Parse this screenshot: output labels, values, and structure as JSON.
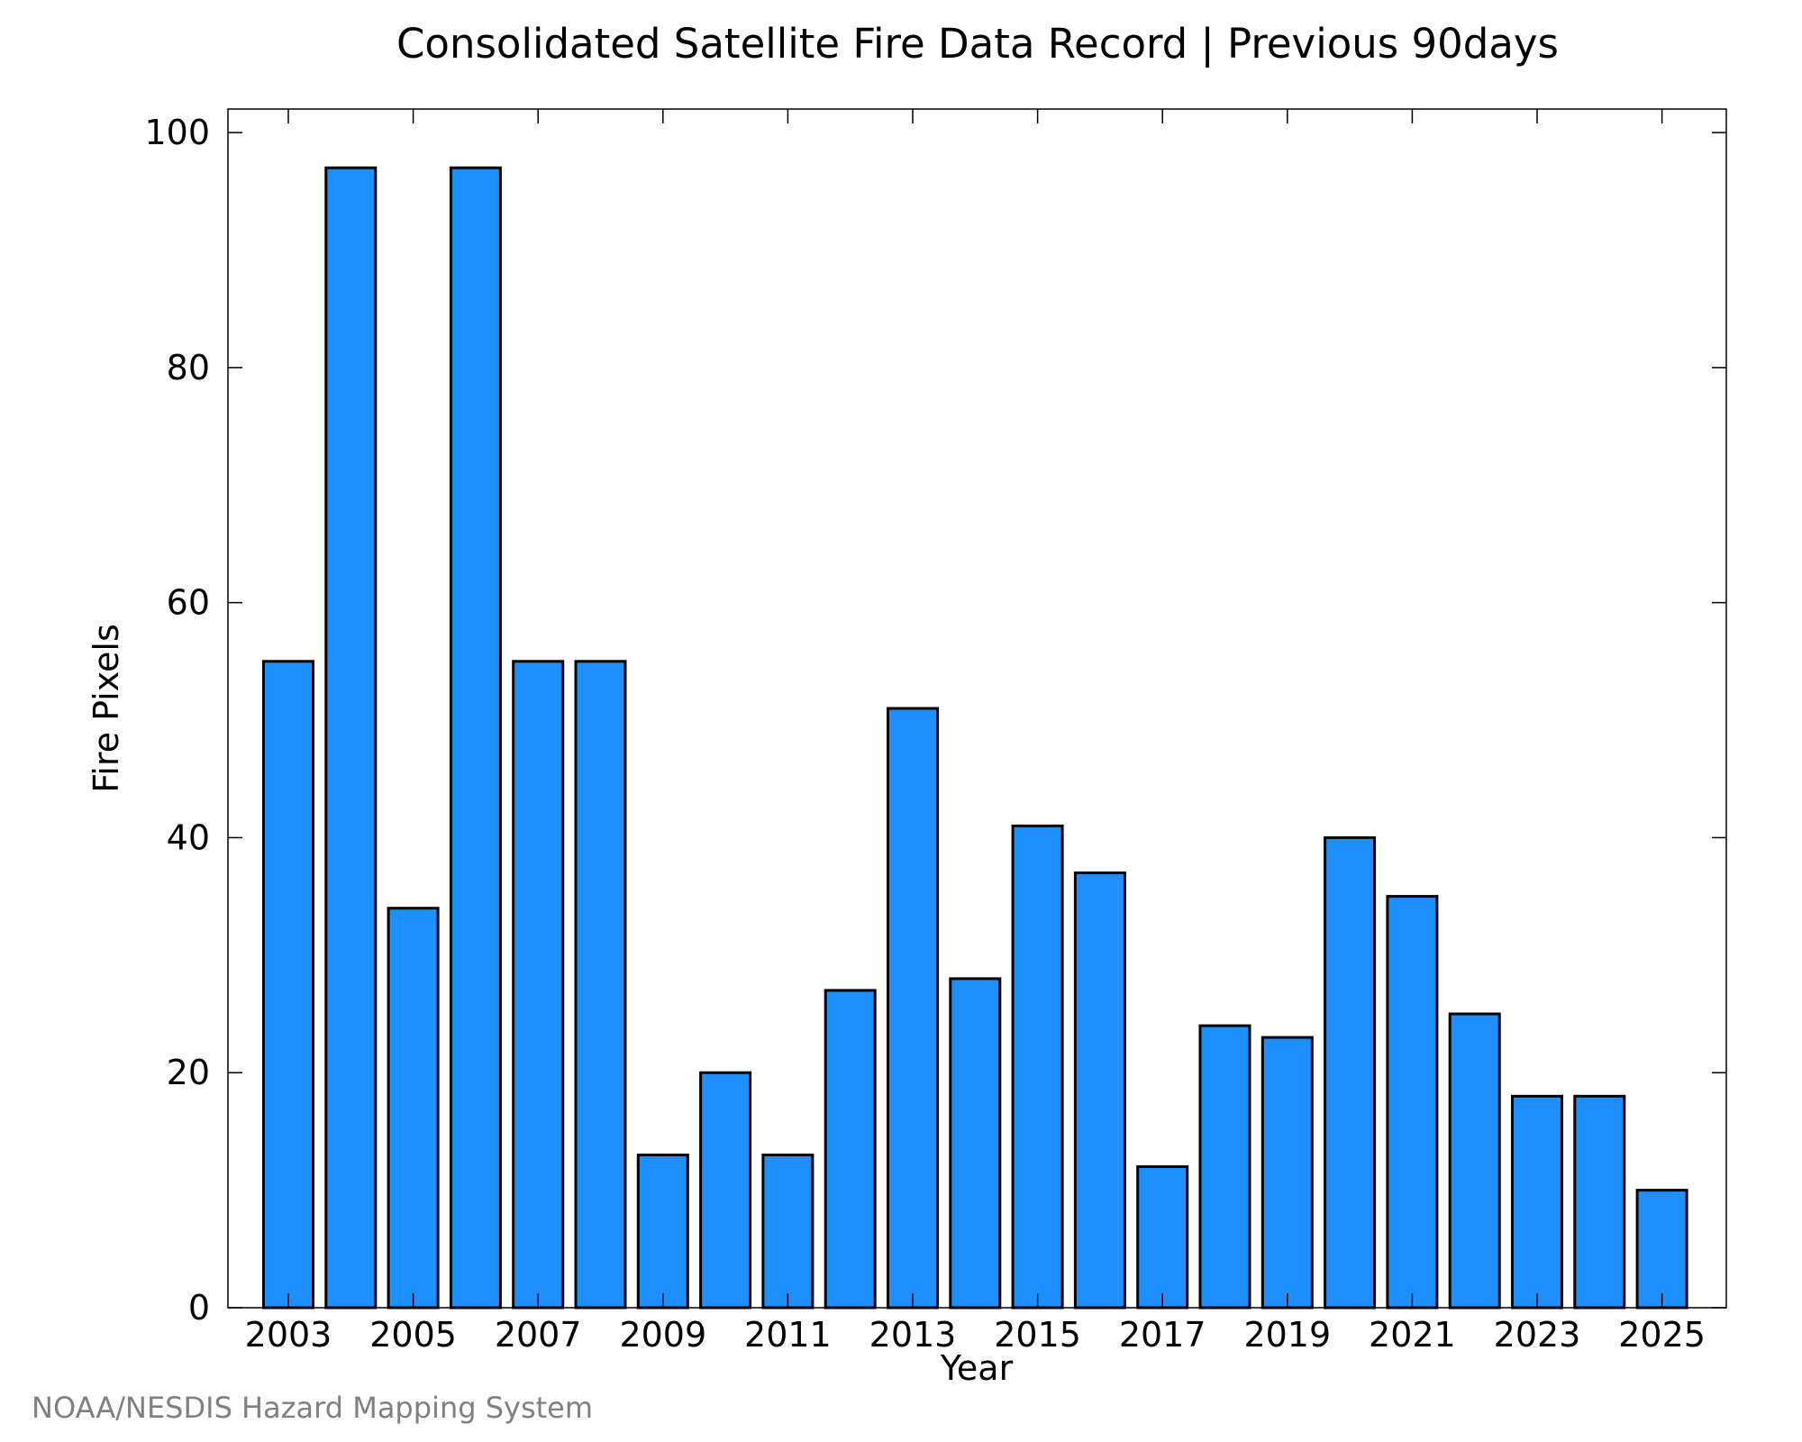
{
  "chart_data": {
    "type": "bar",
    "title": "Consolidated Satellite Fire Data Record | Previous 90days",
    "xlabel": "Year",
    "ylabel": "Fire Pixels",
    "categories": [
      "2003",
      "2004",
      "2005",
      "2006",
      "2007",
      "2008",
      "2009",
      "2010",
      "2011",
      "2012",
      "2013",
      "2014",
      "2015",
      "2016",
      "2017",
      "2018",
      "2019",
      "2020",
      "2021",
      "2022",
      "2023",
      "2024",
      "2025"
    ],
    "values": [
      55,
      97,
      34,
      97,
      55,
      55,
      13,
      20,
      13,
      27,
      51,
      28,
      41,
      37,
      12,
      24,
      23,
      40,
      35,
      25,
      18,
      18,
      10
    ],
    "x_tick_labels": [
      "2003",
      "2005",
      "2007",
      "2009",
      "2011",
      "2013",
      "2015",
      "2017",
      "2019",
      "2021",
      "2023",
      "2025"
    ],
    "y_ticks": [
      "0",
      "20",
      "40",
      "60",
      "80",
      "100"
    ],
    "ylim": [
      0,
      102
    ],
    "bar_color": "#1e8fff",
    "grid": false,
    "legend": "none"
  },
  "credit": "NOAA/NESDIS Hazard Mapping System"
}
